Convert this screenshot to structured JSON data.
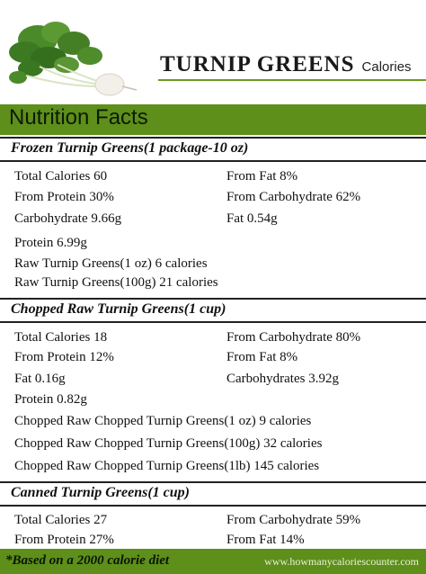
{
  "header": {
    "title": "TURNIP GREENS",
    "subtitle": "Calories"
  },
  "nutrition_facts_label": "Nutrition Facts",
  "sections": [
    {
      "heading": "Frozen Turnip Greens(1 package-10 oz)",
      "left": [
        "Total Calories 60",
        "From Protein 30%",
        "Carbohydrate 9.66g",
        "Protein 6.99g",
        "Raw Turnip Greens(1 oz) 6 calories",
        "Raw Turnip Greens(100g) 21 calories"
      ],
      "right": [
        "From Fat 8%",
        "From Carbohydrate 62%",
        "Fat 0.54g"
      ]
    },
    {
      "heading": "Chopped Raw Turnip Greens(1 cup)",
      "left": [
        "Total Calories 18",
        "From Protein 12%",
        "Fat 0.16g",
        "Protein 0.82g",
        "Chopped Raw Chopped Turnip Greens(1 oz) 9 calories",
        "Chopped Raw Chopped Turnip Greens(100g) 32 calories",
        "Chopped Raw Chopped Turnip Greens(1lb) 145 calories"
      ],
      "right": [
        "From Carbohydrate 80%",
        "From Fat 8%",
        "Carbohydrates 3.92g"
      ]
    },
    {
      "heading": "Canned Turnip Greens(1 cup)",
      "left": [
        "Total Calories 27",
        "From Protein 27%"
      ],
      "right": [
        "From Carbohydrate 59%",
        "From Fat 14%"
      ]
    }
  ],
  "footer": {
    "note": "*Based on a 2000 calorie diet",
    "site": "www.howmanycaloriescounter.com"
  },
  "colors": {
    "accent_green": "#5d8f1a",
    "title_rule": "#6a9b1c"
  }
}
